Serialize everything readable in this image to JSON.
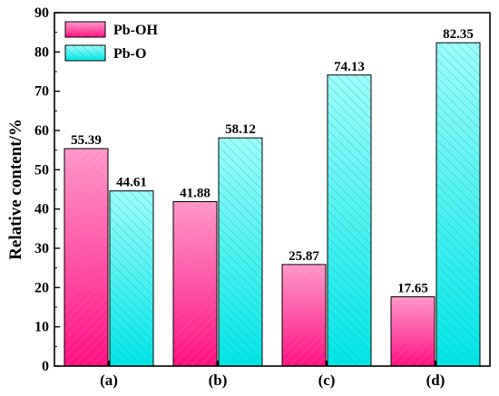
{
  "chart_data": {
    "type": "bar",
    "title": "",
    "xlabel": "",
    "ylabel": "Relative content/%",
    "categories": [
      "(a)",
      "(b)",
      "(c)",
      "(d)"
    ],
    "series": [
      {
        "name": "Pb-OH",
        "values": [
          55.39,
          41.88,
          25.87,
          17.65
        ],
        "value_labels": [
          "55.39",
          "41.88",
          "25.87",
          "17.65"
        ]
      },
      {
        "name": "Pb-O",
        "values": [
          44.61,
          58.12,
          74.13,
          82.35
        ],
        "value_labels": [
          "44.61",
          "58.12",
          "74.13",
          "82.35"
        ]
      }
    ],
    "ylim": [
      0,
      90
    ],
    "yticks": [
      0,
      10,
      20,
      30,
      40,
      50,
      60,
      70,
      80,
      90
    ],
    "legend_position": "top-left",
    "grid": false,
    "colors": {
      "Pb-OH": [
        "#ff0f82",
        "#ff9acb"
      ],
      "Pb-O": [
        "#00e6e6",
        "#9ffcfc"
      ]
    }
  }
}
